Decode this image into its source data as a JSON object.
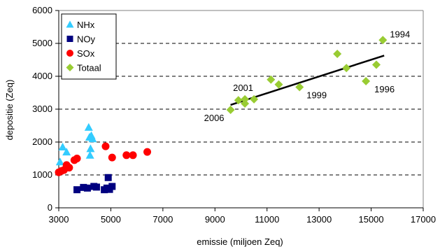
{
  "chart_data": {
    "type": "scatter",
    "xlabel": "emissie (miljoen Zeq)",
    "ylabel": "depositie (Zeq)",
    "xlim": [
      3000,
      17000
    ],
    "ylim": [
      0,
      6000
    ],
    "xticks": [
      3000,
      5000,
      7000,
      9000,
      11000,
      13000,
      15000,
      17000
    ],
    "yticks": [
      0,
      1000,
      2000,
      3000,
      4000,
      5000,
      6000
    ],
    "grid": "horizontal dashed",
    "legend_position": "top-left",
    "series": [
      {
        "name": "NHx",
        "marker": "triangle",
        "color": "#33CCFF",
        "points": [
          [
            3050,
            1400
          ],
          [
            3150,
            1850
          ],
          [
            3300,
            1700
          ],
          [
            4150,
            2450
          ],
          [
            4180,
            2150
          ],
          [
            4200,
            1600
          ],
          [
            4220,
            1800
          ],
          [
            4250,
            2200
          ],
          [
            4300,
            2100
          ]
        ]
      },
      {
        "name": "NOy",
        "marker": "square",
        "color": "#000080",
        "points": [
          [
            3700,
            550
          ],
          [
            3950,
            620
          ],
          [
            4100,
            600
          ],
          [
            4350,
            650
          ],
          [
            4450,
            630
          ],
          [
            4750,
            550
          ],
          [
            4850,
            600
          ],
          [
            4900,
            920
          ],
          [
            4950,
            560
          ],
          [
            5050,
            650
          ]
        ]
      },
      {
        "name": "SOx",
        "marker": "circle",
        "color": "#FF0000",
        "points": [
          [
            3000,
            1080
          ],
          [
            3100,
            1120
          ],
          [
            3200,
            1150
          ],
          [
            3300,
            1300
          ],
          [
            3400,
            1220
          ],
          [
            3600,
            1450
          ],
          [
            3700,
            1500
          ],
          [
            4800,
            1870
          ],
          [
            5050,
            1530
          ],
          [
            5600,
            1600
          ],
          [
            5850,
            1600
          ],
          [
            6400,
            1700
          ]
        ]
      },
      {
        "name": "Totaal",
        "marker": "diamond",
        "color": "#99CC33",
        "points": [
          [
            9600,
            2980
          ],
          [
            9900,
            3270
          ],
          [
            10150,
            3300
          ],
          [
            10150,
            3170
          ],
          [
            10500,
            3300
          ],
          [
            11150,
            3900
          ],
          [
            11450,
            3750
          ],
          [
            12250,
            3670
          ],
          [
            13700,
            4680
          ],
          [
            14050,
            4250
          ],
          [
            14800,
            3850
          ],
          [
            15200,
            4350
          ],
          [
            15450,
            5100
          ]
        ]
      }
    ],
    "trendline": {
      "series": "Totaal",
      "x": [
        9600,
        15500
      ],
      "y": [
        3130,
        4630
      ],
      "color": "#000000"
    },
    "annotations": [
      {
        "text": "1994",
        "x": 15450,
        "y": 5100
      },
      {
        "text": "2001",
        "x": 10500,
        "y": 3300
      },
      {
        "text": "1999",
        "x": 12250,
        "y": 3670
      },
      {
        "text": "1996",
        "x": 14800,
        "y": 3850
      },
      {
        "text": "2006",
        "x": 9600,
        "y": 2980
      }
    ]
  }
}
